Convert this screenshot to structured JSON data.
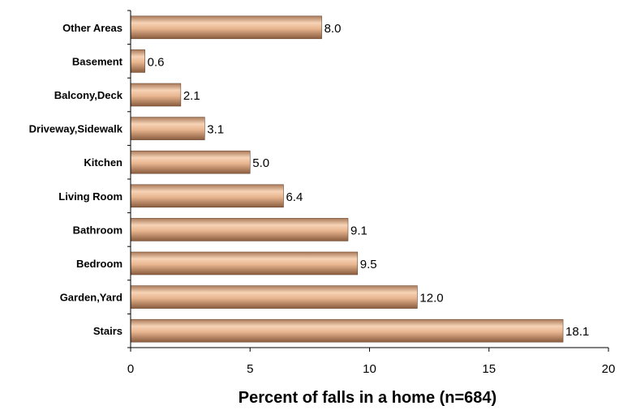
{
  "chart_data": {
    "type": "bar",
    "orientation": "horizontal",
    "categories": [
      "Other Areas",
      "Basement",
      "Balcony,Deck",
      "Driveway,Sidewalk",
      "Kitchen",
      "Living Room",
      "Bathroom",
      "Bedroom",
      "Garden,Yard",
      "Stairs"
    ],
    "values": [
      8.0,
      0.6,
      2.1,
      3.1,
      5.0,
      6.4,
      9.1,
      9.5,
      12.0,
      18.1
    ],
    "value_labels": [
      "8.0",
      "0.6",
      "2.1",
      "3.1",
      "5.0",
      "6.4",
      "9.1",
      "9.5",
      "12.0",
      "18.1"
    ],
    "xlabel": "Percent of falls in a home (n=684)",
    "ylabel": "",
    "xlim": [
      0,
      20
    ],
    "x_ticks": [
      "0",
      "5",
      "10",
      "15",
      "20"
    ],
    "grid": false,
    "legend": "none",
    "bar_color": "#e6b28f"
  }
}
